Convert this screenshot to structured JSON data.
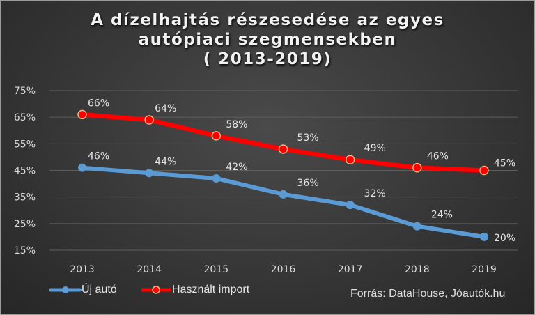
{
  "chart_data": {
    "type": "line",
    "title_lines": [
      "A dízelhajtás részesedése az egyes",
      "autópiaci szegmensekben",
      "( 2013-2019)"
    ],
    "xlabel": "",
    "ylabel": "",
    "categories": [
      "2013",
      "2014",
      "2015",
      "2016",
      "2017",
      "2018",
      "2019"
    ],
    "y_ticks": [
      "75%",
      "65%",
      "55%",
      "45%",
      "35%",
      "25%",
      "15%"
    ],
    "ylim": [
      15,
      75
    ],
    "y_step": 10,
    "grid": true,
    "legend_position": "bottom-left",
    "series": [
      {
        "name": "Új autó",
        "color": "#5b9bd5",
        "marker": "filled-circle",
        "values": [
          46,
          44,
          42,
          36,
          32,
          24,
          20
        ],
        "labels": [
          "46%",
          "44%",
          "42%",
          "36%",
          "32%",
          "24%",
          "20%"
        ]
      },
      {
        "name": "Használt import",
        "color": "#ff0000",
        "marker": "ring-circle",
        "marker_edge": "#f4b183",
        "values": [
          66,
          64,
          58,
          53,
          49,
          46,
          45
        ],
        "labels": [
          "66%",
          "64%",
          "58%",
          "53%",
          "49%",
          "46%",
          "45%"
        ]
      }
    ],
    "source_note": "Forrás: DataHouse, Jóautók.hu"
  }
}
